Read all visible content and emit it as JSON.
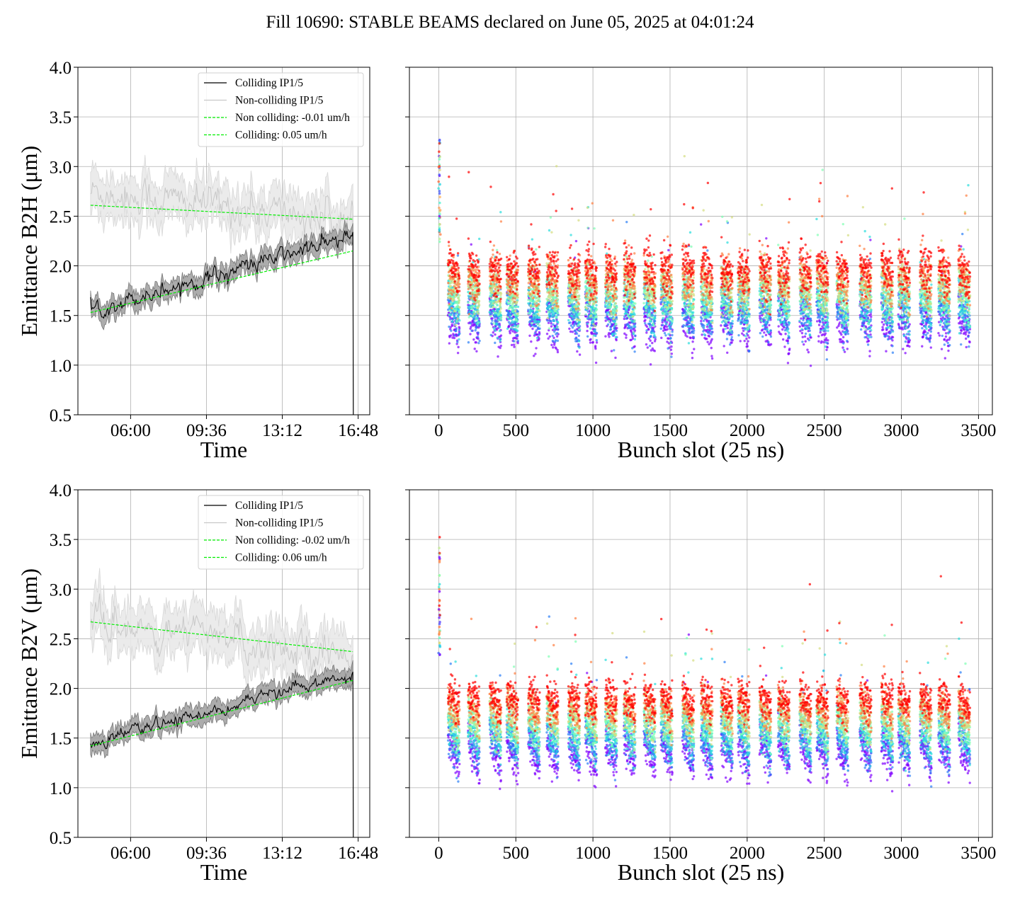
{
  "title": "Fill 10690: STABLE BEAMS declared on June 05, 2025 at 04:01:24",
  "colors": {
    "colliding": "#000000",
    "colliding_band": "#9e9e9e",
    "noncolliding": "#c8c8c8",
    "noncolliding_band": "#e9e9e9",
    "fit": "#00ee00",
    "scatter_palette": "rainbow"
  },
  "chart_data": [
    {
      "type": "line",
      "panel": "top-left",
      "xlabel": "Time",
      "ylabel": "Emittance B2H (μm)",
      "xticks": [
        "06:00",
        "09:36",
        "13:12",
        "16:48"
      ],
      "xticks_hours": [
        6.0,
        9.6,
        13.2,
        16.8
      ],
      "xlim_hours": [
        3.5,
        17.35
      ],
      "ylim": [
        0.5,
        4.0
      ],
      "yticks": [
        "0.5",
        "1.0",
        "1.5",
        "2.0",
        "2.5",
        "3.0",
        "3.5",
        "4.0"
      ],
      "grid": true,
      "legend_position": "top-right",
      "time_range_hours": [
        4.1,
        16.55
      ],
      "series": [
        {
          "name": "Colliding IP1/5",
          "kind": "mean",
          "start": 1.55,
          "end": 2.3,
          "band": 0.09,
          "noise": 0.07
        },
        {
          "name": "Non-colliding IP1/5",
          "kind": "mean",
          "start": 2.75,
          "end": 2.45,
          "band": 0.2,
          "noise": 0.15
        },
        {
          "name": "Non colliding: -0.01 um/h",
          "kind": "fit",
          "start": 2.61,
          "end": 2.47
        },
        {
          "name": "Colliding: 0.05 um/h",
          "kind": "fit",
          "start": 1.53,
          "end": 2.15
        }
      ]
    },
    {
      "type": "scatter",
      "panel": "top-right",
      "xlabel": "Bunch slot (25 ns)",
      "xticks": [
        "0",
        "500",
        "1000",
        "1500",
        "2000",
        "2500",
        "3000",
        "3500"
      ],
      "xlim": [
        -190,
        3590
      ],
      "ylim": [
        0.5,
        4.0
      ],
      "grid": true,
      "trains_start": [
        60,
        190,
        330,
        440,
        580,
        700,
        840,
        950,
        1080,
        1200,
        1330,
        1440,
        1580,
        1700,
        1830,
        1940,
        2080,
        2200,
        2340,
        2450,
        2580,
        2730,
        2870,
        2980,
        3120,
        3240,
        3370
      ],
      "train_length": 75,
      "pilot_bunches": {
        "slot": 5,
        "range": [
          2.2,
          3.3
        ]
      },
      "early_emittance": 1.55,
      "late_emittance": 2.0,
      "tail_drop_per_train": 0.25,
      "spread": 0.12
    },
    {
      "type": "line",
      "panel": "bottom-left",
      "xlabel": "Time",
      "ylabel": "Emittance B2V (μm)",
      "xticks": [
        "06:00",
        "09:36",
        "13:12",
        "16:48"
      ],
      "xticks_hours": [
        6.0,
        9.6,
        13.2,
        16.8
      ],
      "xlim_hours": [
        3.5,
        17.35
      ],
      "ylim": [
        0.5,
        4.0
      ],
      "yticks": [
        "0.5",
        "1.0",
        "1.5",
        "2.0",
        "2.5",
        "3.0",
        "3.5",
        "4.0"
      ],
      "grid": true,
      "legend_position": "top-right",
      "time_range_hours": [
        4.1,
        16.55
      ],
      "series": [
        {
          "name": "Colliding IP1/5",
          "kind": "mean",
          "start": 1.45,
          "end": 2.15,
          "band": 0.09,
          "noise": 0.05
        },
        {
          "name": "Non-colliding IP1/5",
          "kind": "mean",
          "start": 2.65,
          "end": 2.35,
          "band": 0.22,
          "noise": 0.14
        },
        {
          "name": "Non colliding: -0.02 um/h",
          "kind": "fit",
          "start": 2.67,
          "end": 2.37
        },
        {
          "name": "Colliding: 0.06 um/h",
          "kind": "fit",
          "start": 1.42,
          "end": 2.08
        }
      ]
    },
    {
      "type": "scatter",
      "panel": "bottom-right",
      "xlabel": "Bunch slot (25 ns)",
      "xticks": [
        "0",
        "500",
        "1000",
        "1500",
        "2000",
        "2500",
        "3000",
        "3500"
      ],
      "xlim": [
        -190,
        3590
      ],
      "ylim": [
        0.5,
        4.0
      ],
      "grid": true,
      "trains_start": [
        60,
        190,
        330,
        440,
        580,
        700,
        840,
        950,
        1080,
        1200,
        1330,
        1440,
        1580,
        1700,
        1830,
        1940,
        2080,
        2200,
        2340,
        2450,
        2580,
        2730,
        2870,
        2980,
        3120,
        3240,
        3370
      ],
      "train_length": 75,
      "pilot_bunches": {
        "slot": 5,
        "range": [
          2.3,
          3.55
        ]
      },
      "early_emittance": 1.5,
      "late_emittance": 1.95,
      "tail_drop_per_train": 0.3,
      "spread": 0.1
    }
  ]
}
